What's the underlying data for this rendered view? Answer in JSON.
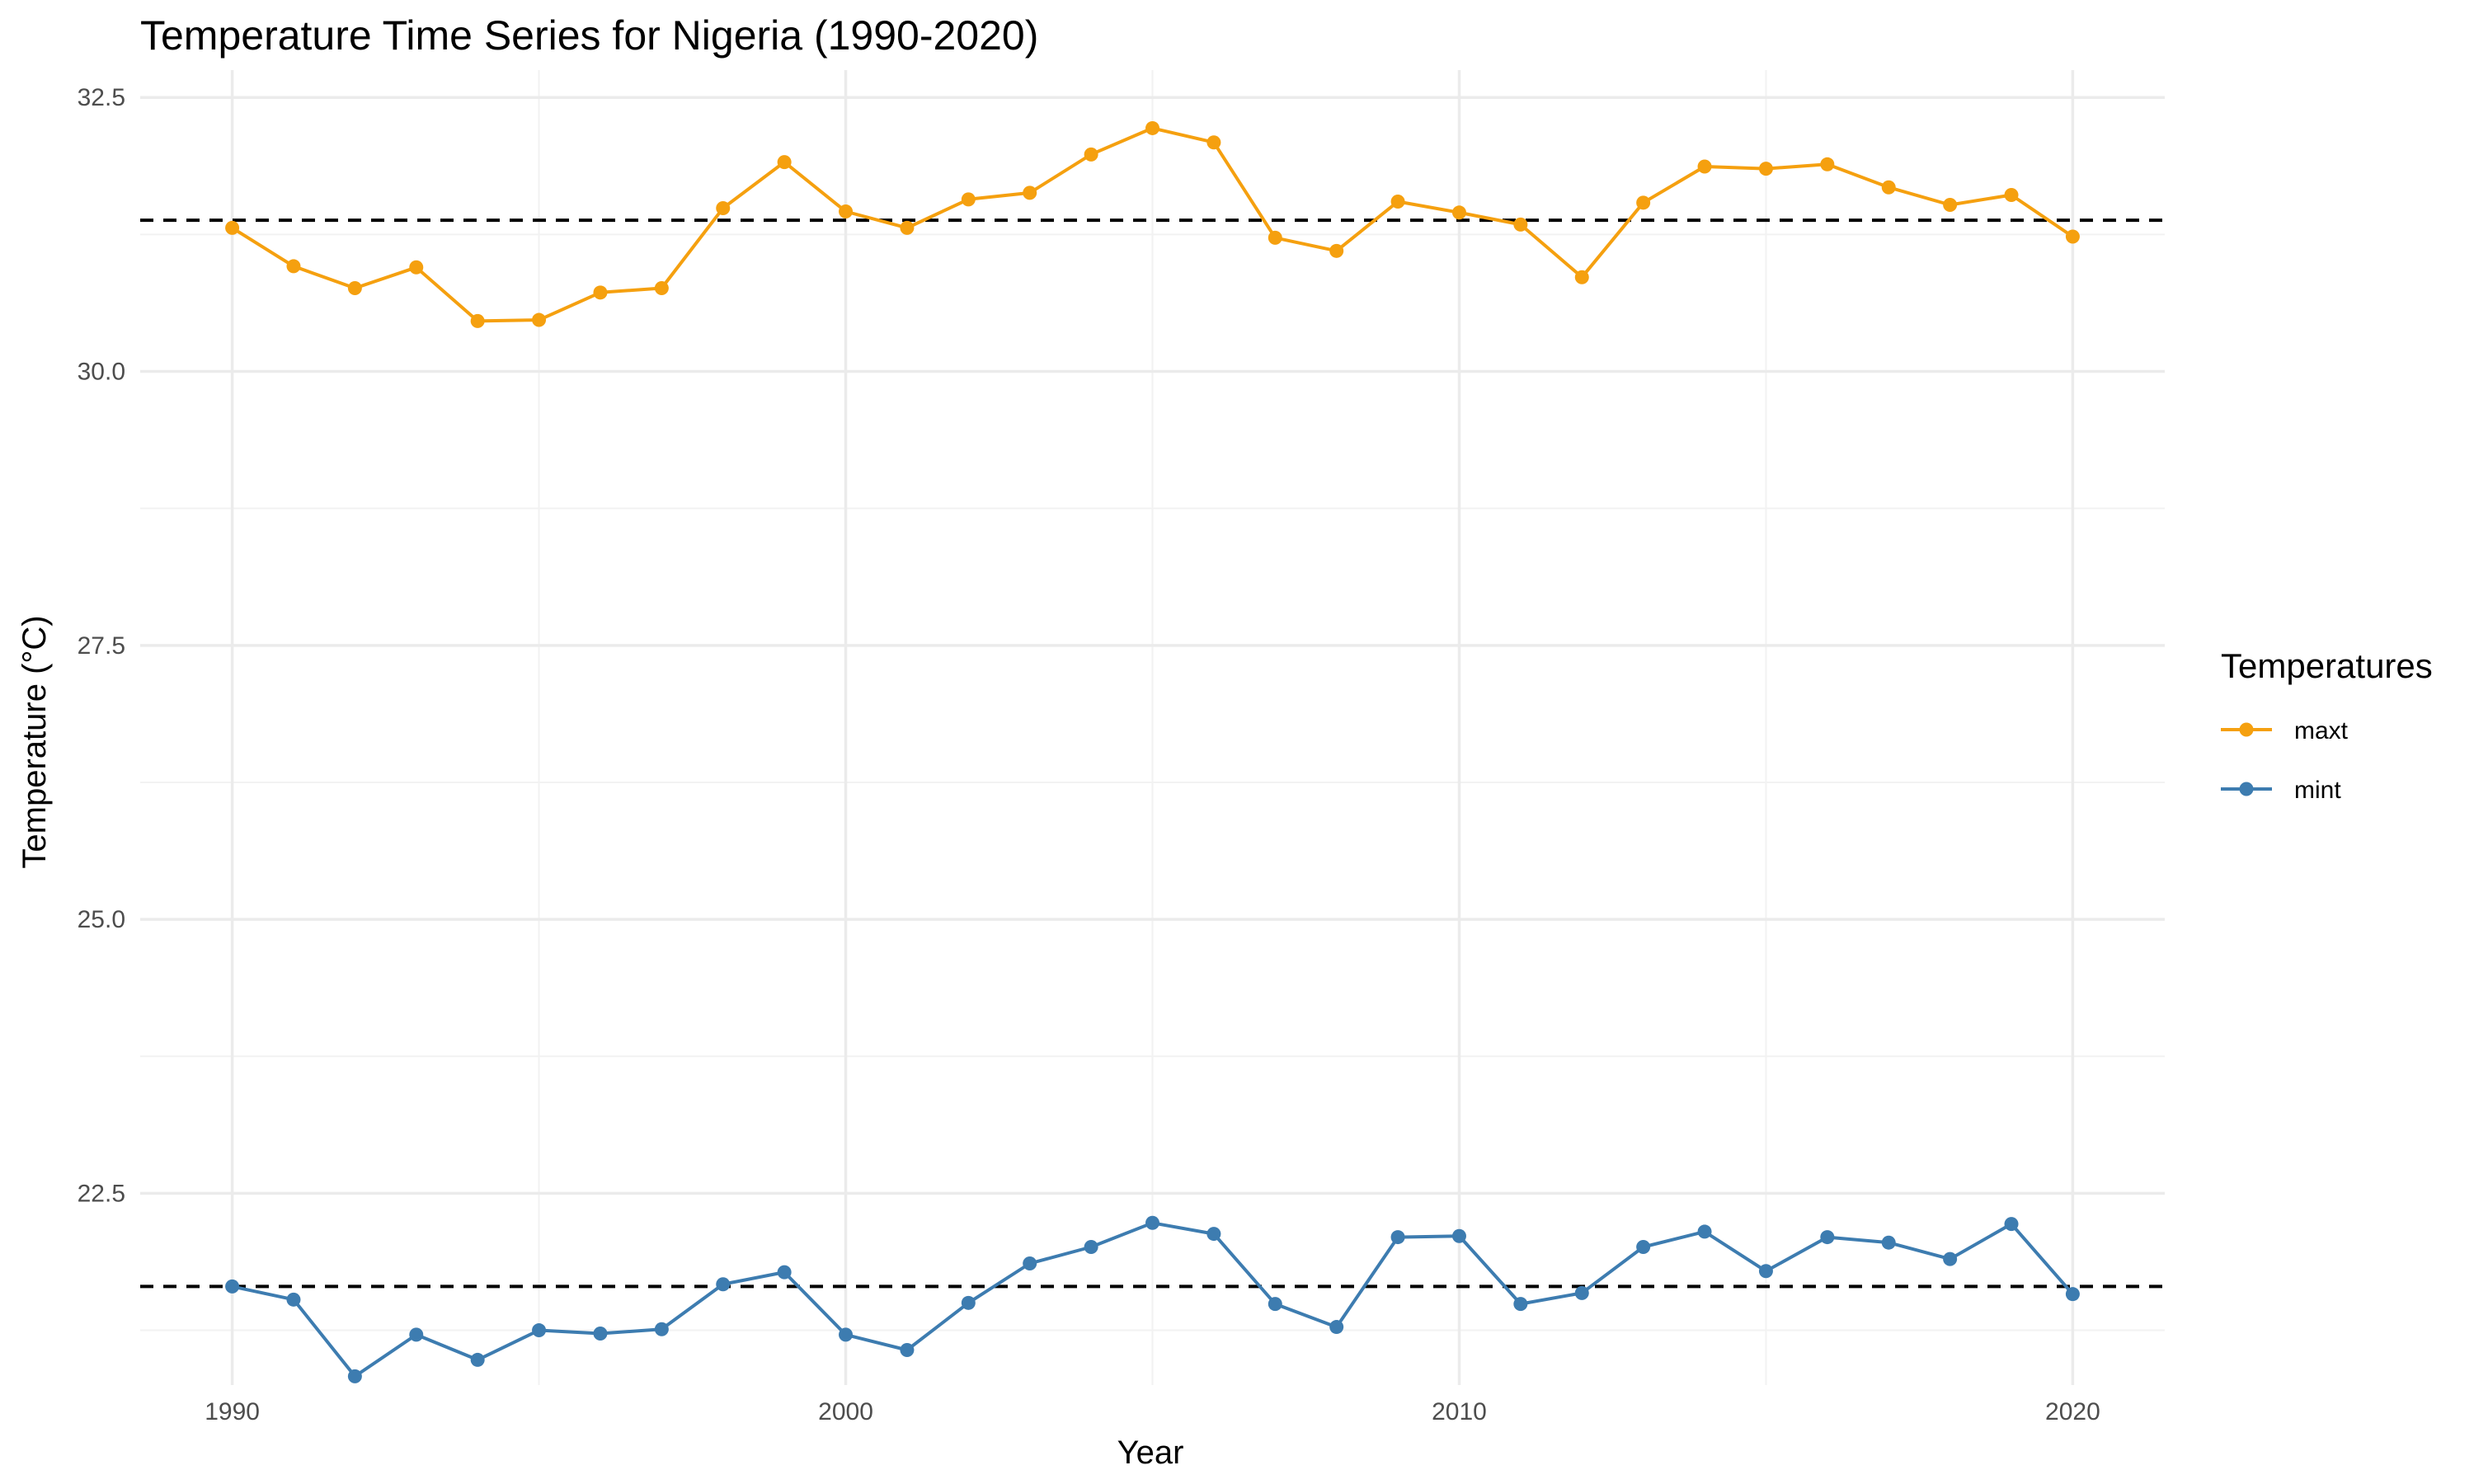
{
  "chart_data": {
    "type": "line",
    "title": "Temperature Time Series for Nigeria (1990-2020)",
    "xlabel": "Year",
    "ylabel": "Temperature (°C)",
    "xlim": [
      1988.5,
      2021.5
    ],
    "ylim": [
      20.75,
      32.75
    ],
    "x_ticks": [
      1990,
      2000,
      2010,
      2020
    ],
    "y_ticks": [
      22.5,
      25.0,
      27.5,
      30.0,
      32.5
    ],
    "y_tick_labels": [
      "22.5",
      "25.0",
      "27.5",
      "30.0",
      "32.5"
    ],
    "grid": true,
    "legend": {
      "title": "Temperatures",
      "position": "right"
    },
    "x": [
      1990,
      1991,
      1992,
      1993,
      1994,
      1995,
      1996,
      1997,
      1998,
      1999,
      2000,
      2001,
      2002,
      2003,
      2004,
      2005,
      2006,
      2007,
      2008,
      2009,
      2010,
      2011,
      2012,
      2013,
      2014,
      2015,
      2016,
      2017,
      2018,
      2019,
      2020
    ],
    "series": [
      {
        "name": "maxt",
        "color": "#f5a00f",
        "values": [
          31.31,
          30.96,
          30.76,
          30.95,
          30.46,
          30.47,
          30.72,
          30.76,
          31.49,
          31.91,
          31.46,
          31.31,
          31.57,
          31.63,
          31.98,
          32.22,
          32.09,
          31.22,
          31.1,
          31.55,
          31.45,
          31.34,
          30.86,
          31.54,
          31.87,
          31.85,
          31.89,
          31.68,
          31.52,
          31.61,
          31.23
        ]
      },
      {
        "name": "mint",
        "color": "#3d7cb0",
        "values": [
          21.65,
          21.53,
          20.83,
          21.21,
          20.98,
          21.25,
          21.22,
          21.26,
          21.67,
          21.78,
          21.21,
          21.07,
          21.5,
          21.86,
          22.01,
          22.23,
          22.13,
          21.49,
          21.28,
          22.1,
          22.11,
          21.49,
          21.59,
          22.01,
          22.15,
          21.79,
          22.1,
          22.05,
          21.9,
          22.22,
          21.58
        ]
      }
    ],
    "reference_lines": [
      {
        "series": "maxt",
        "value": 31.38,
        "style": "dashed",
        "color": "#000000"
      },
      {
        "series": "mint",
        "value": 21.65,
        "style": "dashed",
        "color": "#000000"
      }
    ]
  }
}
